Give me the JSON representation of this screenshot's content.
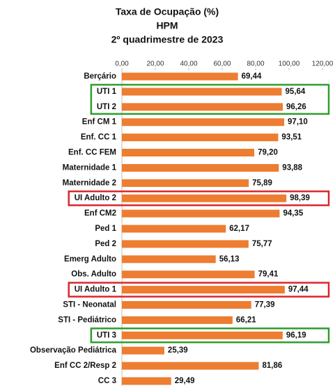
{
  "chart_data": {
    "type": "barh",
    "title": [
      "Taxa de Ocupação (%)",
      "HPM",
      "2º quadrimestre de 2023"
    ],
    "categories": [
      "Berçário",
      "UTI 1",
      "UTI 2",
      "Enf CM 1",
      "Enf. CC 1",
      "Enf. CC FEM",
      "Maternidade 1",
      "Maternidade 2",
      "UI  Adulto 2",
      "Enf CM2",
      "Ped 1",
      "Ped 2",
      "Emerg Adulto",
      "Obs. Adulto",
      "UI Adulto 1",
      "STI - Neonatal",
      "STI - Pediátrico",
      "UTI 3",
      "Observação Pediátrica",
      "Enf CC 2/Resp 2",
      "CC 3"
    ],
    "values": [
      69.44,
      95.64,
      96.26,
      97.1,
      93.51,
      79.2,
      93.88,
      75.89,
      98.39,
      94.35,
      62.17,
      75.77,
      56.13,
      79.41,
      97.44,
      77.39,
      66.21,
      96.19,
      25.39,
      81.86,
      29.49
    ],
    "value_labels": [
      "69,44",
      "95,64",
      "96,26",
      "97,10",
      "93,51",
      "79,20",
      "93,88",
      "75,89",
      "98,39",
      "94,35",
      "62,17",
      "75,77",
      "56,13",
      "79,41",
      "97,44",
      "77,39",
      "66,21",
      "96,19",
      "25,39",
      "81,86",
      "29,49"
    ],
    "color": "#ed7d31",
    "xlim": [
      0,
      120
    ],
    "xticks": [
      {
        "value": 0,
        "label": "0,00"
      },
      {
        "value": 20,
        "label": "20,00"
      },
      {
        "value": 40,
        "label": "40,00"
      },
      {
        "value": 60,
        "label": "60,00"
      },
      {
        "value": 80,
        "label": "80,00"
      },
      {
        "value": 100,
        "label": "100,00"
      },
      {
        "value": 120,
        "label": "120,00"
      }
    ],
    "grid": false,
    "highlights": [
      {
        "from": 1,
        "to": 2,
        "color": "#2e9e2e"
      },
      {
        "from": 8,
        "to": 8,
        "color": "#d9262c"
      },
      {
        "from": 14,
        "to": 14,
        "color": "#d9262c"
      },
      {
        "from": 17,
        "to": 17,
        "color": "#2e9e2e"
      }
    ]
  }
}
